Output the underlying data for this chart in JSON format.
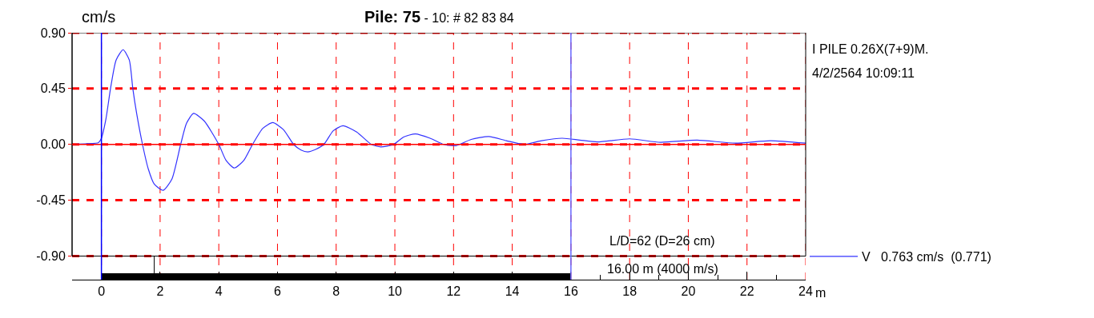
{
  "chart_data": {
    "type": "line",
    "title": "Pile: 75",
    "subtitle": "- 10: # 82 83 84",
    "ylabel": "cm/s",
    "xlabel": "m",
    "x": [
      -0.97,
      -0.5,
      -0.1,
      0,
      0.15,
      0.31,
      0.5,
      0.74,
      0.95,
      1.07,
      1.2,
      1.4,
      1.6,
      1.8,
      2.1,
      2.4,
      2.7,
      2.9,
      3.14,
      3.5,
      4.0,
      4.25,
      4.53,
      4.85,
      5.15,
      5.5,
      5.84,
      6.2,
      6.55,
      6.8,
      7.03,
      7.3,
      7.58,
      7.9,
      8.23,
      8.7,
      9.2,
      9.52,
      9.95,
      10.3,
      10.7,
      11.2,
      11.66,
      12.08,
      12.6,
      13.2,
      13.8,
      14.4,
      15.0,
      15.7,
      16.3,
      16.9,
      18.0,
      19.05,
      20.3,
      21.6,
      22.8,
      24
    ],
    "series": [
      {
        "name": "V   0.763 cm/s  (0.771)",
        "color": "#3333ff",
        "values": [
          0.0,
          0.005,
          0.015,
          0.05,
          0.2,
          0.45,
          0.68,
          0.763,
          0.68,
          0.45,
          0.25,
          0,
          -0.2,
          -0.32,
          -0.37,
          -0.28,
          0,
          0.17,
          0.25,
          0.19,
          0,
          -0.13,
          -0.19,
          -0.13,
          0,
          0.13,
          0.176,
          0.12,
          0,
          -0.045,
          -0.06,
          -0.04,
          0,
          0.11,
          0.15,
          0.1,
          0,
          -0.02,
          0,
          0.06,
          0.085,
          0.05,
          0,
          -0.01,
          0.04,
          0.064,
          0.03,
          0.0,
          0.03,
          0.05,
          0.035,
          0.02,
          0.045,
          0.017,
          0.035,
          0.01,
          0.03,
          0.01
        ]
      },
      {
        "color": "#000000",
        "x": [
          0,
          16
        ],
        "values": [
          -1.064,
          -1.064
        ]
      },
      {
        "color": "#000000",
        "x": [
          1.8,
          1.8
        ],
        "values": [
          -1.064,
          -0.9
        ]
      }
    ],
    "xlim": [
      -1,
      24
    ],
    "xticks": [
      0,
      2,
      4,
      6,
      8,
      10,
      12,
      14,
      16,
      18,
      20,
      22,
      24
    ],
    "ylim": [
      -1.09,
      0.9
    ],
    "yticks": [
      {
        "value": 0.9,
        "label": "0.90"
      },
      {
        "value": 0.45,
        "label": "0.45"
      },
      {
        "value": 0,
        "label": "0.00"
      },
      {
        "value": -0.45,
        "label": "-0.45"
      },
      {
        "value": -0.9,
        "label": "-0.90"
      }
    ],
    "grid": true,
    "legend": "right",
    "marker": "none",
    "line_style": "solid",
    "ref_lines": [
      {
        "axis": "y",
        "value": 0,
        "color": "#ff0000"
      },
      {
        "axis": "x",
        "value": 0,
        "color": "#0000ff"
      },
      {
        "axis": "x",
        "value": 16,
        "color": "#6666ff"
      }
    ],
    "annotations": [
      "I PILE 0.26X(7+9)M.",
      "4/2/2564 10:09:11",
      "L/D=62 (D=26 cm)",
      "16.00 m (4000 m/s)"
    ]
  }
}
